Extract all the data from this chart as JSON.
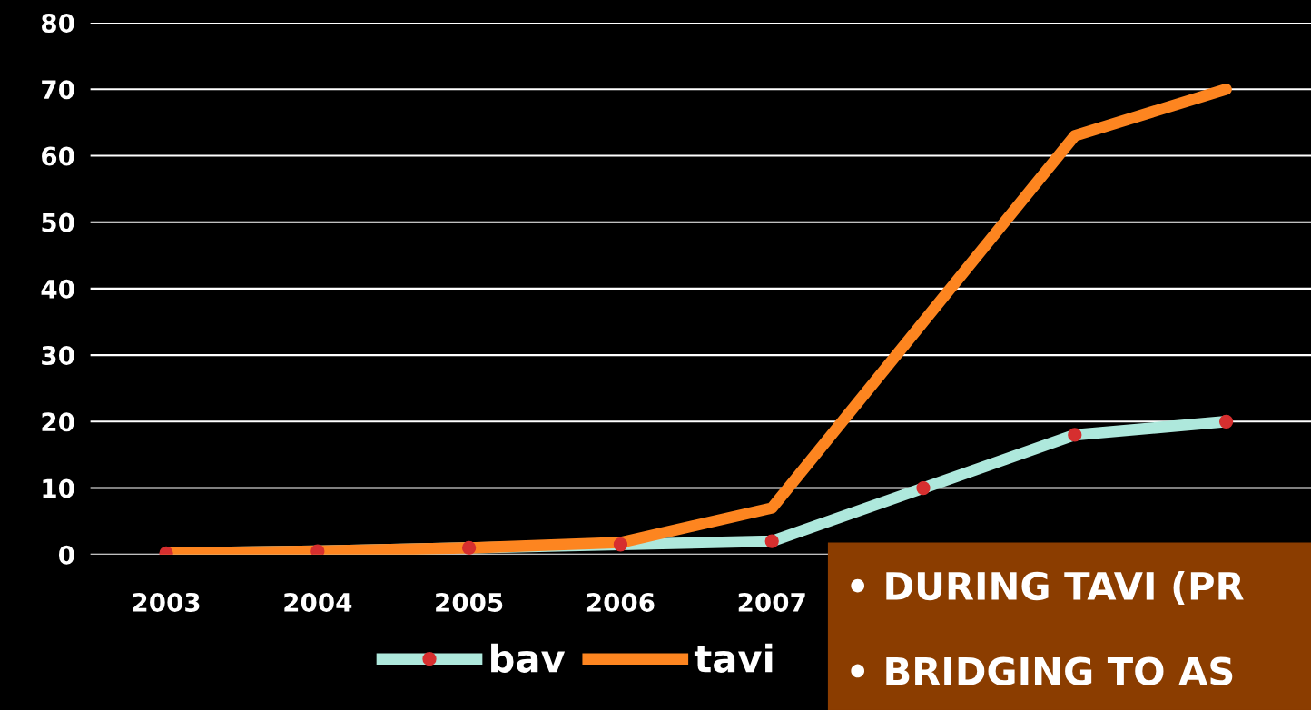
{
  "chart_data": {
    "type": "line",
    "categories": [
      "2003",
      "2004",
      "2005",
      "2006",
      "2007",
      null,
      null,
      null
    ],
    "series": [
      {
        "name": "bav",
        "color": "#aee8dc",
        "marker": "circle",
        "values": [
          0.2,
          0.5,
          1,
          1.5,
          2,
          10,
          18,
          20
        ]
      },
      {
        "name": "tavi",
        "color": "#fd8520",
        "values": [
          0.2,
          0.5,
          1,
          1.8,
          7,
          35,
          63,
          70
        ]
      }
    ],
    "ylim": [
      0,
      80
    ],
    "yticks": [
      0,
      10,
      20,
      30,
      40,
      50,
      60,
      70,
      80
    ],
    "grid": "y",
    "legend": "bottom",
    "annotations": [
      "• DURING TAVI (PR",
      "• BRIDGING TO AS"
    ]
  }
}
